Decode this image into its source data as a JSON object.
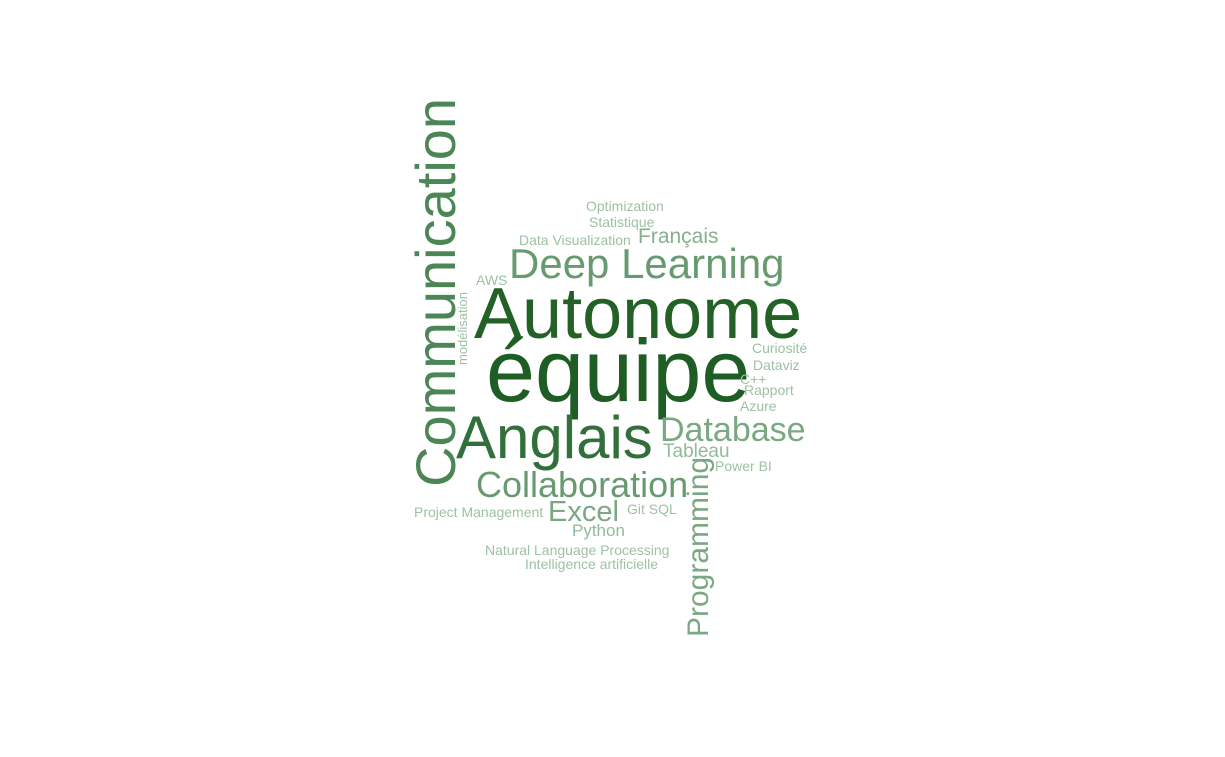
{
  "word_cloud": {
    "words": [
      {
        "text": "équipe",
        "weight": 1.0,
        "color": "#1e5e24"
      },
      {
        "text": "Autonome",
        "weight": 0.9,
        "color": "#246127"
      },
      {
        "text": "Anglais",
        "weight": 0.78,
        "color": "#336f3a"
      },
      {
        "text": "Communication",
        "weight": 0.74,
        "color": "#4d8656"
      },
      {
        "text": "Deep Learning",
        "weight": 0.55,
        "color": "#689a70"
      },
      {
        "text": "Collaboration",
        "weight": 0.48,
        "color": "#689a70"
      },
      {
        "text": "Database",
        "weight": 0.44,
        "color": "#7aa882"
      },
      {
        "text": "Programming",
        "weight": 0.38,
        "color": "#7aa882"
      },
      {
        "text": "Excel",
        "weight": 0.36,
        "color": "#7aa882"
      },
      {
        "text": "Français",
        "weight": 0.28,
        "color": "#86b08e"
      },
      {
        "text": "Tableau",
        "weight": 0.24,
        "color": "#94ba9a"
      },
      {
        "text": "Python",
        "weight": 0.22,
        "color": "#94ba9a"
      },
      {
        "text": "Optimization",
        "weight": 0.16,
        "color": "#9dc1a3"
      },
      {
        "text": "Statistique",
        "weight": 0.16,
        "color": "#9dc1a3"
      },
      {
        "text": "Data Visualization",
        "weight": 0.16,
        "color": "#9dc1a3"
      },
      {
        "text": "AWS",
        "weight": 0.16,
        "color": "#9dc1a3"
      },
      {
        "text": "modélisation",
        "weight": 0.14,
        "color": "#9dc1a3"
      },
      {
        "text": "Curiosité",
        "weight": 0.15,
        "color": "#9dc1a3"
      },
      {
        "text": "Dataviz",
        "weight": 0.15,
        "color": "#9dc1a3"
      },
      {
        "text": "C++",
        "weight": 0.15,
        "color": "#9dc1a3"
      },
      {
        "text": "Rapport",
        "weight": 0.15,
        "color": "#9dc1a3"
      },
      {
        "text": "Azure",
        "weight": 0.15,
        "color": "#9dc1a3"
      },
      {
        "text": "Power BI",
        "weight": 0.15,
        "color": "#9dc1a3"
      },
      {
        "text": "Git SQL",
        "weight": 0.16,
        "color": "#9dc1a3"
      },
      {
        "text": "Project Management",
        "weight": 0.16,
        "color": "#9dc1a3"
      },
      {
        "text": "Natural Language Processing",
        "weight": 0.16,
        "color": "#9dc1a3"
      },
      {
        "text": "Intelligence artificielle",
        "weight": 0.16,
        "color": "#9dc1a3"
      }
    ]
  }
}
